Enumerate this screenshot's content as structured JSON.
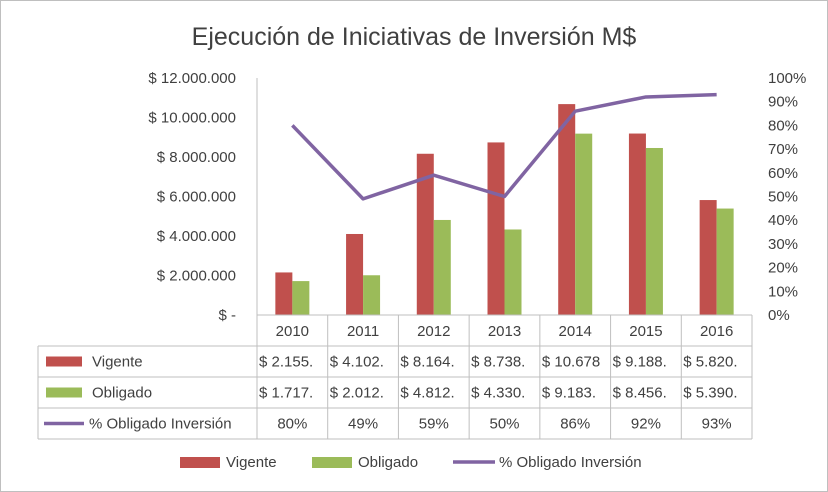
{
  "chart_data": {
    "type": "bar",
    "title": "Ejecución de Iniciativas de Inversión M$",
    "categories": [
      "2010",
      "2011",
      "2012",
      "2013",
      "2014",
      "2015",
      "2016"
    ],
    "ylim": [
      0,
      12000000
    ],
    "y_ticks": [
      0,
      2000000,
      4000000,
      6000000,
      8000000,
      10000000,
      12000000
    ],
    "y_tick_labels": [
      "$ -",
      "$ 2.000.000",
      "$ 4.000.000",
      "$ 6.000.000",
      "$ 8.000.000",
      "$ 10.000.000",
      "$ 12.000.000"
    ],
    "y2lim": [
      0,
      100
    ],
    "y2_ticks": [
      0,
      10,
      20,
      30,
      40,
      50,
      60,
      70,
      80,
      90,
      100
    ],
    "y2_tick_labels": [
      "0%",
      "10%",
      "20%",
      "30%",
      "40%",
      "50%",
      "60%",
      "70%",
      "80%",
      "90%",
      "100%"
    ],
    "series": [
      {
        "name": "Vigente",
        "type": "bar",
        "color": "#c0504d",
        "values": [
          2155000,
          4102000,
          8164000,
          8738000,
          10678000,
          9188000,
          5820000
        ],
        "table_labels": [
          "$ 2.155.",
          "$ 4.102.",
          "$ 8.164.",
          "$ 8.738.",
          "$ 10.678",
          "$ 9.188.",
          "$ 5.820."
        ]
      },
      {
        "name": "Obligado",
        "type": "bar",
        "color": "#9bbb59",
        "values": [
          1717000,
          2012000,
          4812000,
          4330000,
          9183000,
          8456000,
          5390000
        ],
        "table_labels": [
          "$ 1.717.",
          "$ 2.012.",
          "$ 4.812.",
          "$ 4.330.",
          "$ 9.183.",
          "$ 8.456.",
          "$ 5.390."
        ]
      },
      {
        "name": "% Obligado Inversión",
        "type": "line",
        "axis": "secondary",
        "color": "#8064a2",
        "values": [
          80,
          49,
          59,
          50,
          86,
          92,
          93
        ],
        "table_labels": [
          "80%",
          "49%",
          "59%",
          "50%",
          "86%",
          "92%",
          "93%"
        ]
      }
    ],
    "legend_position": "bottom"
  }
}
